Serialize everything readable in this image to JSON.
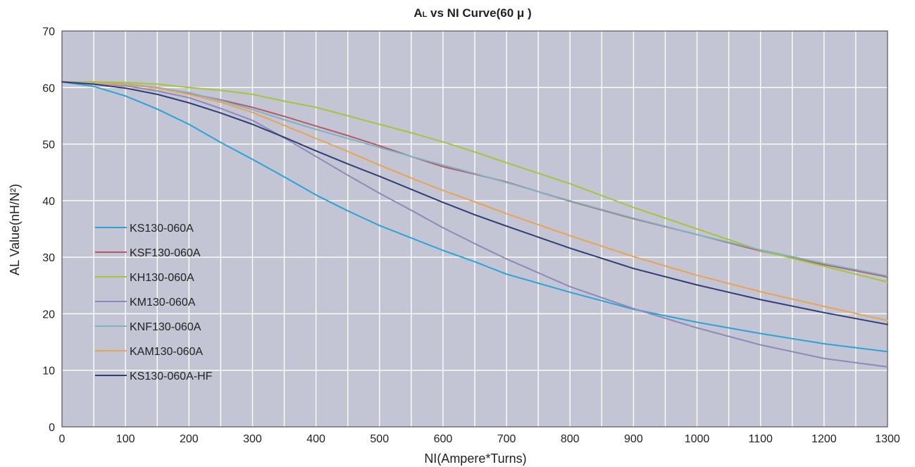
{
  "chart_data": {
    "type": "line",
    "title_main": "A",
    "title_sub": "L",
    "title_rest": " vs NI Curve(60 μ )",
    "xlabel": "NI(Ampere*Turns)",
    "ylabel": "AL Value(nH/N²)",
    "xlim": [
      0,
      1300
    ],
    "ylim": [
      0,
      70
    ],
    "xticks": [
      0,
      100,
      200,
      300,
      400,
      500,
      600,
      700,
      800,
      900,
      1000,
      1100,
      1200,
      1300
    ],
    "yticks": [
      0,
      10,
      20,
      30,
      40,
      50,
      60,
      70
    ],
    "grid": true,
    "legend_position": "left",
    "colors": {
      "plot_background": "#c3c5d4",
      "grid": "#ffffff",
      "frame": "#555555"
    },
    "series": [
      {
        "name": "KS130-060A",
        "color": "#2ba3d8",
        "x": [
          0,
          50,
          100,
          150,
          200,
          250,
          300,
          350,
          400,
          450,
          500,
          550,
          600,
          650,
          700,
          800,
          900,
          1000,
          1100,
          1200,
          1300
        ],
        "y": [
          61,
          60.2,
          58.5,
          56.2,
          53.5,
          50.3,
          47.3,
          44.2,
          41,
          38.2,
          35.6,
          33.4,
          31.2,
          29.2,
          27,
          23.8,
          20.8,
          18.5,
          16.5,
          14.7,
          13.3
        ]
      },
      {
        "name": "KSF130-060A",
        "color": "#b55a66",
        "x": [
          0,
          50,
          100,
          150,
          200,
          250,
          300,
          350,
          400,
          450,
          500,
          550,
          600,
          650,
          700,
          800,
          900,
          1000,
          1100,
          1200,
          1300
        ],
        "y": [
          61,
          60.9,
          60.6,
          60,
          59,
          57.8,
          56.5,
          54.9,
          53.2,
          51.5,
          49.7,
          47.8,
          46,
          44.7,
          43.3,
          39.9,
          36.8,
          34,
          31.1,
          28.7,
          26.5
        ]
      },
      {
        "name": "KH130-060A",
        "color": "#a8c43a",
        "x": [
          0,
          50,
          100,
          150,
          200,
          250,
          300,
          350,
          400,
          450,
          500,
          550,
          600,
          650,
          700,
          800,
          900,
          1000,
          1100,
          1200,
          1300
        ],
        "y": [
          61,
          61,
          60.9,
          60.6,
          60,
          59.5,
          58.8,
          57.6,
          56.5,
          55,
          53.5,
          52,
          50.4,
          48.6,
          46.7,
          43,
          38.8,
          35,
          31.2,
          28.4,
          25.6
        ]
      },
      {
        "name": "KM130-060A",
        "color": "#8f88b8",
        "x": [
          0,
          50,
          100,
          150,
          200,
          250,
          300,
          350,
          400,
          450,
          500,
          550,
          600,
          650,
          700,
          800,
          900,
          1000,
          1100,
          1200,
          1300
        ],
        "y": [
          61,
          60.8,
          60.3,
          59.4,
          58.2,
          56.3,
          54.2,
          51.1,
          47.8,
          44.5,
          41.3,
          38.3,
          35.2,
          32.4,
          29.7,
          24.8,
          20.9,
          17.5,
          14.5,
          12.1,
          10.6
        ]
      },
      {
        "name": "KNF130-060A",
        "color": "#7fb3c2",
        "x": [
          0,
          50,
          100,
          150,
          200,
          250,
          300,
          350,
          400,
          450,
          500,
          550,
          600,
          650,
          700,
          800,
          900,
          1000,
          1100,
          1200,
          1300
        ],
        "y": [
          61,
          60.9,
          60.6,
          60,
          59.1,
          57.7,
          56.1,
          54.3,
          52.6,
          51,
          49.4,
          47.8,
          46.3,
          44.8,
          43.2,
          40,
          36.9,
          34,
          31.3,
          28.9,
          26.7
        ]
      },
      {
        "name": "KAM130-060A",
        "color": "#e8a452",
        "x": [
          0,
          50,
          100,
          150,
          200,
          250,
          300,
          350,
          400,
          450,
          500,
          550,
          600,
          650,
          700,
          800,
          900,
          1000,
          1100,
          1200,
          1300
        ],
        "y": [
          61,
          60.8,
          60.5,
          59.9,
          58.8,
          57.4,
          55.6,
          53.3,
          51,
          48.7,
          46.3,
          44,
          41.8,
          39.8,
          37.7,
          33.8,
          30.1,
          26.8,
          23.9,
          21.3,
          18.8
        ]
      },
      {
        "name": "KS130-060A-HF",
        "color": "#2e3f78",
        "x": [
          0,
          50,
          100,
          150,
          200,
          250,
          300,
          350,
          400,
          450,
          500,
          550,
          600,
          650,
          700,
          800,
          900,
          1000,
          1100,
          1200,
          1300
        ],
        "y": [
          61,
          60.6,
          59.9,
          58.8,
          57.3,
          55.5,
          53.5,
          51.2,
          48.8,
          46.5,
          44.3,
          42,
          39.7,
          37.5,
          35.5,
          31.6,
          28,
          25.1,
          22.5,
          20.2,
          18.1
        ]
      }
    ]
  }
}
